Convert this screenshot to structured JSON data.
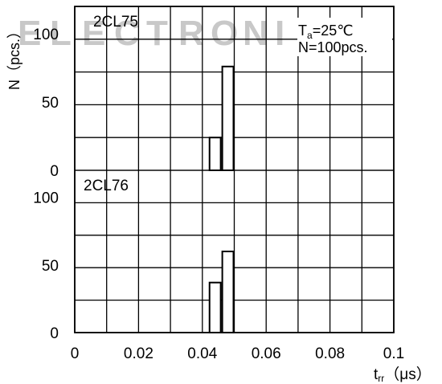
{
  "watermark": "ELECTRONIC",
  "chart_data": [
    {
      "type": "bar",
      "panel_label": "2CL75",
      "condition_temp": "T",
      "condition_temp_sub": "a",
      "condition_temp_value": "=25℃",
      "condition_count": "N=100pcs.",
      "ylabel": "N（pcs.）",
      "ylim": [
        0,
        100
      ],
      "yticks": [
        0,
        50,
        100
      ],
      "xlim": [
        0,
        0.1
      ],
      "grid": true,
      "bars": [
        {
          "x": 0.042,
          "width": 0.004,
          "value": 24
        },
        {
          "x": 0.046,
          "width": 0.004,
          "value": 76
        }
      ]
    },
    {
      "type": "bar",
      "panel_label": "2CL76",
      "ylim": [
        0,
        100
      ],
      "yticks": [
        0,
        50,
        100
      ],
      "xlim": [
        0,
        0.1
      ],
      "grid": true,
      "bars": [
        {
          "x": 0.042,
          "width": 0.004,
          "value": 37
        },
        {
          "x": 0.046,
          "width": 0.004,
          "value": 60
        }
      ]
    }
  ],
  "x_axis": {
    "ticks": [
      "0",
      "0.02",
      "0.04",
      "0.06",
      "0.08",
      "0.1"
    ],
    "label_main": "t",
    "label_sub": "rr",
    "label_unit": "（μs）"
  }
}
